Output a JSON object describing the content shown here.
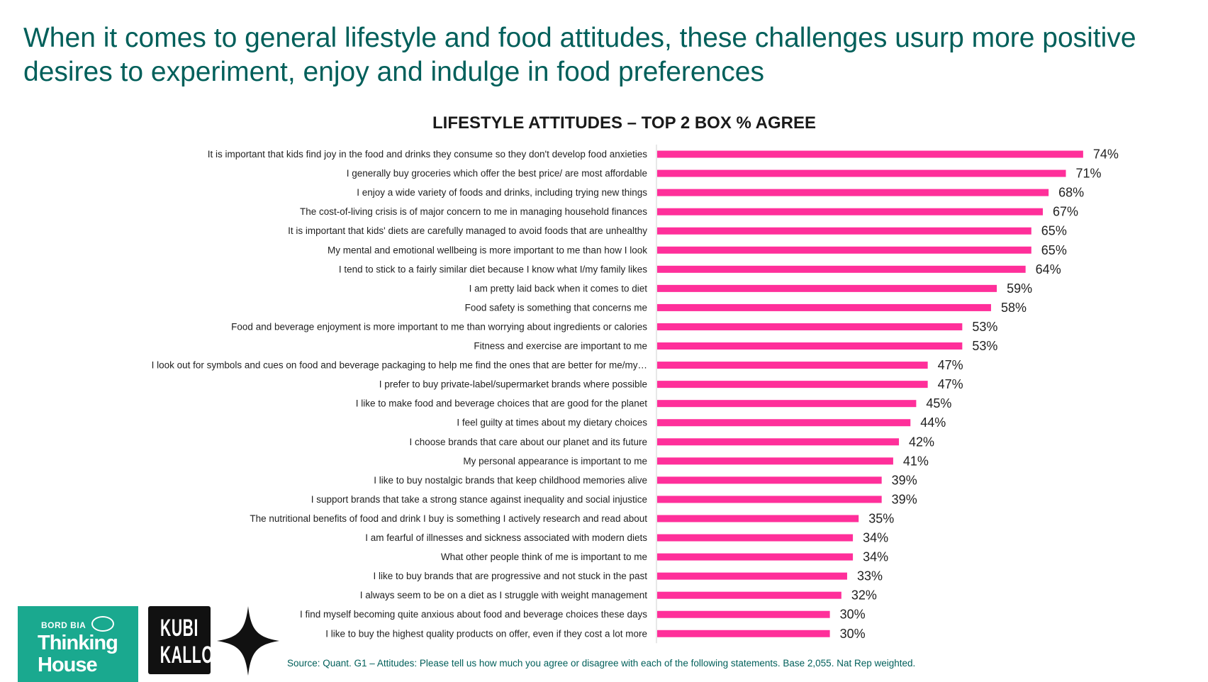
{
  "headline": "When it comes to general lifestyle and food attitudes, these challenges usurp more positive desires to experiment, enjoy and indulge in food preferences",
  "source": "Source: Quant. G1 – Attitudes: Please tell us how much you agree or disagree with each of the following statements. Base 2,055. Nat Rep weighted.",
  "logos": {
    "bordbia_top": "BORD BIA",
    "bordbia_line1": "Thinking",
    "bordbia_line2": "House",
    "kubi_line1": "KUBI",
    "kubi_line2": "KALLOO"
  },
  "colors": {
    "bar": "#ff2f9a",
    "headline": "#005f5a",
    "axis": "#d0d0d0"
  },
  "chart_data": {
    "type": "bar",
    "orientation": "horizontal",
    "title": "LIFESTYLE ATTITUDES – TOP 2 BOX % AGREE",
    "xlabel": "",
    "ylabel": "",
    "xlim": [
      0,
      100
    ],
    "value_suffix": "%",
    "categories": [
      "It is important that kids find joy in the food and drinks they consume so they don't develop food anxieties",
      "I generally buy groceries which offer the best price/ are most affordable",
      "I enjoy a wide variety of foods and drinks, including trying new things",
      "The cost-of-living crisis is of major concern to me in managing household finances",
      "It is important that kids' diets are carefully managed to avoid foods that are unhealthy",
      "My mental and emotional wellbeing is more important to me than how I look",
      "I tend to stick to a fairly similar diet because I know what I/my family likes",
      "I am pretty laid back when it comes to diet",
      "Food safety is something that concerns me",
      "Food and beverage enjoyment is more important to me than worrying about ingredients or calories",
      "Fitness and exercise are important to me",
      "I look out for symbols and cues on food and beverage packaging to help me find the ones that are better for me/my…",
      "I prefer to buy private-label/supermarket brands where possible",
      "I like to make food and beverage choices that are good for the planet",
      "I feel guilty at times about my dietary choices",
      "I choose brands that care about our planet and its future",
      "My personal appearance is important to me",
      "I like to buy nostalgic brands that keep childhood memories alive",
      "I support brands that take a strong stance against inequality and social injustice",
      "The nutritional benefits of food and drink I buy is something I actively research and read about",
      "I am fearful of illnesses and sickness associated with modern diets",
      "What other people think of me is important to me",
      "I like to buy brands that are progressive and not stuck in the past",
      "I always seem to be on a diet as I struggle with weight management",
      "I find myself becoming quite anxious about food and beverage choices these days",
      "I like to buy the highest quality products on offer, even if they cost a lot more"
    ],
    "values": [
      74,
      71,
      68,
      67,
      65,
      65,
      64,
      59,
      58,
      53,
      53,
      47,
      47,
      45,
      44,
      42,
      41,
      39,
      39,
      35,
      34,
      34,
      33,
      32,
      30,
      30
    ]
  }
}
